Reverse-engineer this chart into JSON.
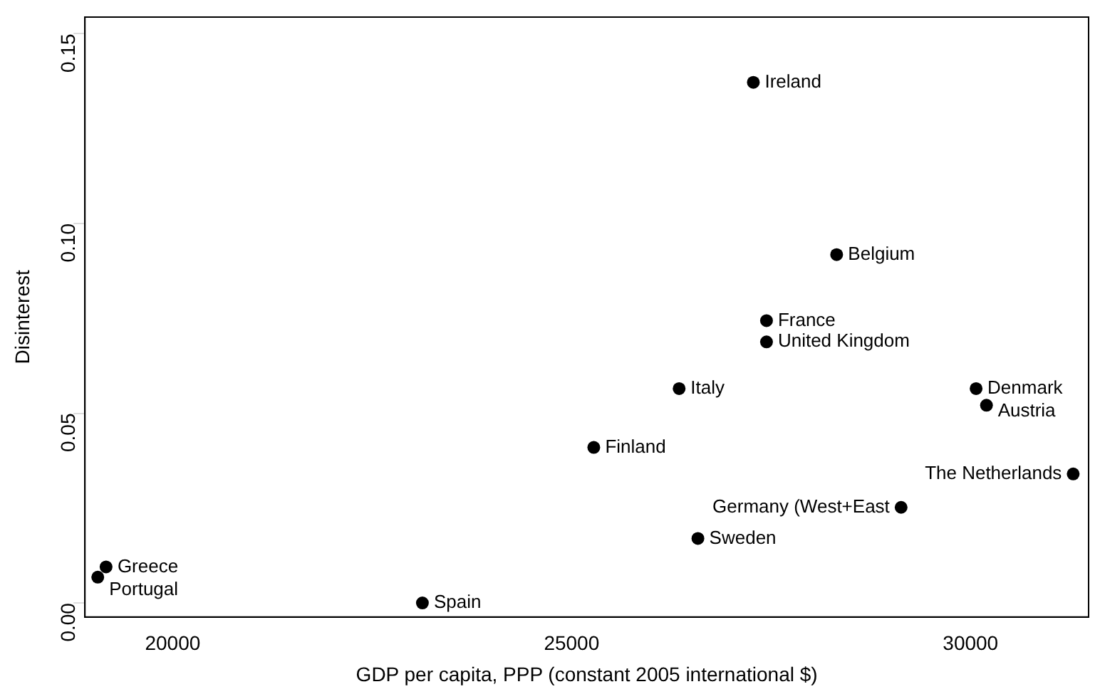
{
  "chart_data": {
    "type": "scatter",
    "xlabel": "GDP per capita, PPP (constant 2005 international $)",
    "ylabel": "Disinterest",
    "x": [
      27278,
      28322,
      27443,
      27443,
      26348,
      30070,
      30200,
      25278,
      31287,
      29130,
      26583,
      19165,
      19061,
      23130
    ],
    "series": [
      {
        "color": "#000000",
        "values": [
          0.1372,
          0.0918,
          0.0744,
          0.0688,
          0.0565,
          0.0565,
          0.0521,
          0.041,
          0.034,
          0.0252,
          0.017,
          0.0095,
          0.0068,
          0.0
        ]
      }
    ],
    "xlim": [
      18900,
      31480
    ],
    "xticks": [
      20000,
      25000,
      30000
    ],
    "ylim": [
      -0.0037,
      0.1544
    ],
    "yticks": [
      {
        "value": 0,
        "label": "0.00"
      },
      {
        "value": 0.05,
        "label": "0.05"
      },
      {
        "value": 0.1,
        "label": "0.10"
      },
      {
        "value": 0.15,
        "label": "0.15"
      }
    ],
    "grid": false,
    "legend": false,
    "marker": "circle",
    "annotations": [
      {
        "text": "Ireland",
        "x": 27278,
        "y": 0.1372
      },
      {
        "text": "Belgium",
        "x": 28322,
        "y": 0.0918
      },
      {
        "text": "France",
        "x": 27443,
        "y": 0.0744
      },
      {
        "text": "United Kingdom",
        "x": 27443,
        "y": 0.0688
      },
      {
        "text": "Italy",
        "x": 26348,
        "y": 0.0565
      },
      {
        "text": "Denmark",
        "x": 30070,
        "y": 0.0565
      },
      {
        "text": "Austria",
        "x": 30200,
        "y": 0.0521
      },
      {
        "text": "Finland",
        "x": 25278,
        "y": 0.041
      },
      {
        "text": "The Netherlands",
        "x": 31287,
        "y": 0.034
      },
      {
        "text": "Germany (West+East",
        "x": 29130,
        "y": 0.0252
      },
      {
        "text": "Sweden",
        "x": 26583,
        "y": 0.017
      },
      {
        "text": "Greece",
        "x": 19165,
        "y": 0.0095
      },
      {
        "text": "Portugal",
        "x": 19061,
        "y": 0.0068
      },
      {
        "text": "Spain",
        "x": 23130,
        "y": 0.0
      }
    ]
  }
}
